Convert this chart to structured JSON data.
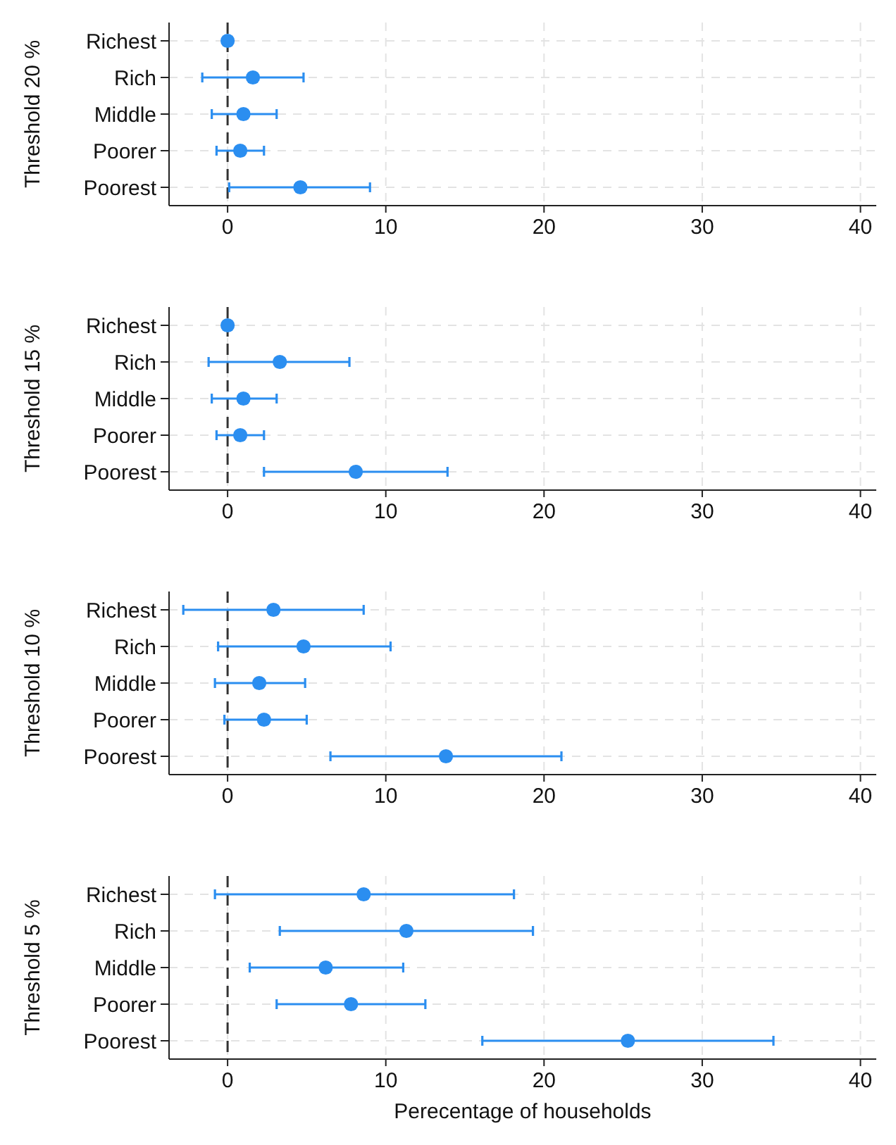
{
  "chart_data": [
    {
      "type": "scatter",
      "orientation": "horizontal",
      "ylabel": "Threshold 20 %",
      "categories": [
        "Richest",
        "Rich",
        "Middle",
        "Poorer",
        "Poorest"
      ],
      "series": [
        {
          "color": "#2b8ef0",
          "values": [
            0,
            1.6,
            1.0,
            0.8,
            4.6
          ],
          "errors": [
            null,
            [
              -1.6,
              4.8
            ],
            [
              -1.0,
              3.1
            ],
            [
              -0.7,
              2.3
            ],
            [
              0.1,
              9.0
            ]
          ]
        }
      ],
      "xlim": [
        -3.7,
        41
      ],
      "xticks": [
        0,
        10,
        20,
        30,
        40
      ],
      "ref_lines": [
        {
          "axis": "x",
          "value": 0,
          "color": "#333333",
          "line_style": "dashed"
        }
      ],
      "grid": true,
      "marker": "circle"
    },
    {
      "type": "scatter",
      "orientation": "horizontal",
      "ylabel": "Threshold 15 %",
      "categories": [
        "Richest",
        "Rich",
        "Middle",
        "Poorer",
        "Poorest"
      ],
      "series": [
        {
          "color": "#2b8ef0",
          "values": [
            0,
            3.3,
            1.0,
            0.8,
            8.1
          ],
          "errors": [
            null,
            [
              -1.2,
              7.7
            ],
            [
              -1.0,
              3.1
            ],
            [
              -0.7,
              2.3
            ],
            [
              2.3,
              13.9
            ]
          ]
        }
      ],
      "xlim": [
        -3.7,
        41
      ],
      "xticks": [
        0,
        10,
        20,
        30,
        40
      ],
      "ref_lines": [
        {
          "axis": "x",
          "value": 0,
          "color": "#333333",
          "line_style": "dashed"
        }
      ],
      "grid": true,
      "marker": "circle"
    },
    {
      "type": "scatter",
      "orientation": "horizontal",
      "ylabel": "Threshold 10 %",
      "categories": [
        "Richest",
        "Rich",
        "Middle",
        "Poorer",
        "Poorest"
      ],
      "series": [
        {
          "color": "#2b8ef0",
          "values": [
            2.9,
            4.8,
            2.0,
            2.3,
            13.8
          ],
          "errors": [
            [
              -2.8,
              8.6
            ],
            [
              -0.6,
              10.3
            ],
            [
              -0.8,
              4.9
            ],
            [
              -0.2,
              5.0
            ],
            [
              6.5,
              21.1
            ]
          ]
        }
      ],
      "xlim": [
        -3.7,
        41
      ],
      "xticks": [
        0,
        10,
        20,
        30,
        40
      ],
      "ref_lines": [
        {
          "axis": "x",
          "value": 0,
          "color": "#333333",
          "line_style": "dashed"
        }
      ],
      "grid": true,
      "marker": "circle"
    },
    {
      "type": "scatter",
      "orientation": "horizontal",
      "ylabel": "Threshold 5 %",
      "xlabel": "Perecentage of households",
      "categories": [
        "Richest",
        "Rich",
        "Middle",
        "Poorer",
        "Poorest"
      ],
      "series": [
        {
          "color": "#2b8ef0",
          "values": [
            8.6,
            11.3,
            6.2,
            7.8,
            25.3
          ],
          "errors": [
            [
              -0.8,
              18.1
            ],
            [
              3.3,
              19.3
            ],
            [
              1.4,
              11.1
            ],
            [
              3.1,
              12.5
            ],
            [
              16.1,
              34.5
            ]
          ]
        }
      ],
      "xlim": [
        -3.7,
        41
      ],
      "xticks": [
        0,
        10,
        20,
        30,
        40
      ],
      "ref_lines": [
        {
          "axis": "x",
          "value": 0,
          "color": "#333333",
          "line_style": "dashed"
        }
      ],
      "grid": true,
      "marker": "circle"
    }
  ]
}
